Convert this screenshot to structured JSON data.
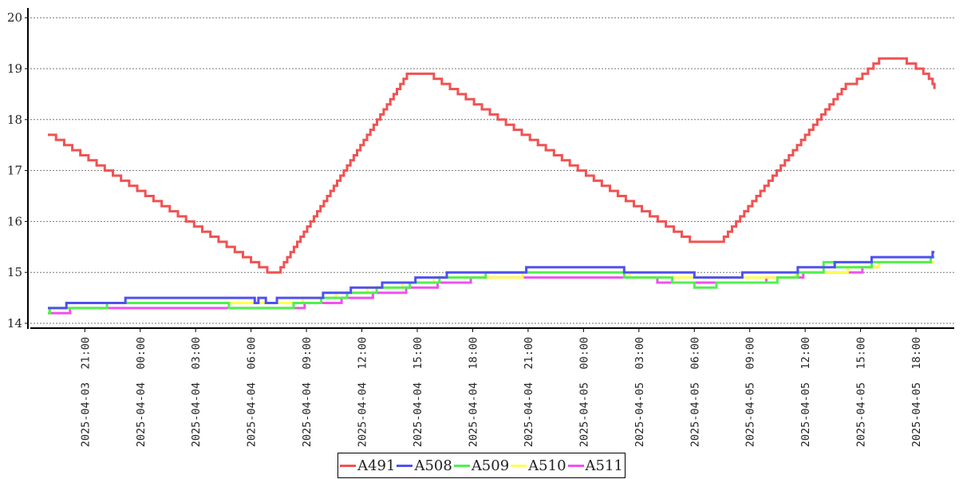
{
  "chart_data": {
    "type": "line",
    "step": true,
    "title": "",
    "xlabel": "",
    "ylabel": "",
    "x_origin": "2025-04-03 19:00",
    "x_unit": "hours since x_origin",
    "xlim": [
      -1.1,
      49.0
    ],
    "ylim": [
      13.9,
      20.2
    ],
    "yticks": [
      14,
      15,
      16,
      17,
      18,
      19,
      20
    ],
    "xtick_hours": [
      2,
      5,
      8,
      11,
      14,
      17,
      20,
      23,
      26,
      29,
      32,
      35,
      38,
      41,
      44,
      47
    ],
    "xtick_labels": [
      "2025-04-03  21:00",
      "2025-04-04  00:00",
      "2025-04-04  03:00",
      "2025-04-04  06:00",
      "2025-04-04  09:00",
      "2025-04-04  12:00",
      "2025-04-04  15:00",
      "2025-04-04  18:00",
      "2025-04-04  21:00",
      "2025-04-05  00:00",
      "2025-04-05  03:00",
      "2025-04-05  06:00",
      "2025-04-05  09:00",
      "2025-04-05  12:00",
      "2025-04-05  15:00",
      "2025-04-05  18:00"
    ],
    "grid": "horizontal-dotted",
    "legend_position": "bottom-center",
    "series": [
      {
        "name": "A491",
        "color": "#f05252",
        "points": [
          [
            0,
            17.7
          ],
          [
            0.44,
            17.6
          ],
          [
            0.88,
            17.5
          ],
          [
            1.32,
            17.4
          ],
          [
            1.76,
            17.3
          ],
          [
            2.2,
            17.2
          ],
          [
            2.64,
            17.1
          ],
          [
            3.08,
            17.0
          ],
          [
            3.52,
            16.9
          ],
          [
            3.96,
            16.8
          ],
          [
            4.4,
            16.7
          ],
          [
            4.84,
            16.6
          ],
          [
            5.28,
            16.5
          ],
          [
            5.72,
            16.4
          ],
          [
            6.16,
            16.3
          ],
          [
            6.6,
            16.2
          ],
          [
            7.04,
            16.1
          ],
          [
            7.48,
            16.0
          ],
          [
            7.92,
            15.9
          ],
          [
            8.36,
            15.8
          ],
          [
            8.8,
            15.7
          ],
          [
            9.24,
            15.6
          ],
          [
            9.68,
            15.5
          ],
          [
            10.12,
            15.4
          ],
          [
            10.56,
            15.3
          ],
          [
            11.0,
            15.2
          ],
          [
            11.44,
            15.1
          ],
          [
            11.88,
            15.0
          ],
          [
            12.6,
            15.1
          ],
          [
            12.78,
            15.2
          ],
          [
            12.96,
            15.3
          ],
          [
            13.14,
            15.4
          ],
          [
            13.32,
            15.5
          ],
          [
            13.5,
            15.6
          ],
          [
            13.68,
            15.7
          ],
          [
            13.86,
            15.8
          ],
          [
            14.04,
            15.9
          ],
          [
            14.22,
            16.0
          ],
          [
            14.4,
            16.1
          ],
          [
            14.58,
            16.2
          ],
          [
            14.76,
            16.3
          ],
          [
            14.94,
            16.4
          ],
          [
            15.12,
            16.5
          ],
          [
            15.3,
            16.6
          ],
          [
            15.48,
            16.7
          ],
          [
            15.66,
            16.8
          ],
          [
            15.84,
            16.9
          ],
          [
            16.02,
            17.0
          ],
          [
            16.2,
            17.1
          ],
          [
            16.38,
            17.2
          ],
          [
            16.56,
            17.3
          ],
          [
            16.74,
            17.4
          ],
          [
            16.92,
            17.5
          ],
          [
            17.1,
            17.6
          ],
          [
            17.28,
            17.7
          ],
          [
            17.46,
            17.8
          ],
          [
            17.64,
            17.9
          ],
          [
            17.82,
            18.0
          ],
          [
            18.0,
            18.1
          ],
          [
            18.18,
            18.2
          ],
          [
            18.36,
            18.3
          ],
          [
            18.54,
            18.4
          ],
          [
            18.72,
            18.5
          ],
          [
            18.9,
            18.6
          ],
          [
            19.08,
            18.7
          ],
          [
            19.26,
            18.8
          ],
          [
            19.44,
            18.9
          ],
          [
            20.9,
            18.8
          ],
          [
            21.33,
            18.7
          ],
          [
            21.77,
            18.6
          ],
          [
            22.2,
            18.5
          ],
          [
            22.63,
            18.4
          ],
          [
            23.07,
            18.3
          ],
          [
            23.5,
            18.2
          ],
          [
            23.93,
            18.1
          ],
          [
            24.36,
            18.0
          ],
          [
            24.8,
            17.9
          ],
          [
            25.23,
            17.8
          ],
          [
            25.66,
            17.7
          ],
          [
            26.1,
            17.6
          ],
          [
            26.53,
            17.5
          ],
          [
            26.96,
            17.4
          ],
          [
            27.4,
            17.3
          ],
          [
            27.83,
            17.2
          ],
          [
            28.26,
            17.1
          ],
          [
            28.69,
            17.0
          ],
          [
            29.13,
            16.9
          ],
          [
            29.56,
            16.8
          ],
          [
            29.99,
            16.7
          ],
          [
            30.43,
            16.6
          ],
          [
            30.86,
            16.5
          ],
          [
            31.29,
            16.4
          ],
          [
            31.73,
            16.3
          ],
          [
            32.16,
            16.2
          ],
          [
            32.59,
            16.1
          ],
          [
            33.02,
            16.0
          ],
          [
            33.46,
            15.9
          ],
          [
            33.89,
            15.8
          ],
          [
            34.32,
            15.7
          ],
          [
            34.76,
            15.6
          ],
          [
            36.6,
            15.7
          ],
          [
            36.82,
            15.8
          ],
          [
            37.04,
            15.9
          ],
          [
            37.26,
            16.0
          ],
          [
            37.48,
            16.1
          ],
          [
            37.7,
            16.2
          ],
          [
            37.92,
            16.3
          ],
          [
            38.14,
            16.4
          ],
          [
            38.36,
            16.5
          ],
          [
            38.58,
            16.6
          ],
          [
            38.8,
            16.7
          ],
          [
            39.02,
            16.8
          ],
          [
            39.24,
            16.9
          ],
          [
            39.46,
            17.0
          ],
          [
            39.68,
            17.1
          ],
          [
            39.9,
            17.2
          ],
          [
            40.12,
            17.3
          ],
          [
            40.34,
            17.4
          ],
          [
            40.56,
            17.5
          ],
          [
            40.78,
            17.6
          ],
          [
            41.0,
            17.7
          ],
          [
            41.22,
            17.8
          ],
          [
            41.44,
            17.9
          ],
          [
            41.66,
            18.0
          ],
          [
            41.88,
            18.1
          ],
          [
            42.1,
            18.2
          ],
          [
            42.32,
            18.3
          ],
          [
            42.54,
            18.4
          ],
          [
            42.76,
            18.5
          ],
          [
            42.98,
            18.6
          ],
          [
            43.2,
            18.7
          ],
          [
            43.8,
            18.8
          ],
          [
            44.1,
            18.9
          ],
          [
            44.4,
            19.0
          ],
          [
            44.7,
            19.1
          ],
          [
            45.0,
            19.2
          ],
          [
            46.5,
            19.1
          ],
          [
            47.0,
            19.0
          ],
          [
            47.4,
            18.9
          ],
          [
            47.7,
            18.8
          ],
          [
            47.9,
            18.7
          ],
          [
            48.0,
            18.6
          ]
        ]
      },
      {
        "name": "A508",
        "color": "#5050f0",
        "points": [
          [
            0,
            14.3
          ],
          [
            1.0,
            14.4
          ],
          [
            4.2,
            14.5
          ],
          [
            11.2,
            14.4
          ],
          [
            11.4,
            14.5
          ],
          [
            11.8,
            14.4
          ],
          [
            12.4,
            14.5
          ],
          [
            14.9,
            14.6
          ],
          [
            16.4,
            14.7
          ],
          [
            18.1,
            14.8
          ],
          [
            19.9,
            14.9
          ],
          [
            21.6,
            15.0
          ],
          [
            25.9,
            15.1
          ],
          [
            31.2,
            15.0
          ],
          [
            35.0,
            14.9
          ],
          [
            37.6,
            15.0
          ],
          [
            40.6,
            15.1
          ],
          [
            42.6,
            15.2
          ],
          [
            44.6,
            15.3
          ],
          [
            47.9,
            15.4
          ],
          [
            48.0,
            15.4
          ]
        ]
      },
      {
        "name": "A509",
        "color": "#50f050",
        "points": [
          [
            0,
            14.2
          ],
          [
            0.1,
            14.3
          ],
          [
            3.2,
            14.4
          ],
          [
            9.8,
            14.3
          ],
          [
            13.3,
            14.4
          ],
          [
            14.8,
            14.5
          ],
          [
            16.2,
            14.6
          ],
          [
            17.8,
            14.7
          ],
          [
            19.6,
            14.8
          ],
          [
            21.2,
            14.9
          ],
          [
            23.7,
            15.0
          ],
          [
            31.2,
            14.9
          ],
          [
            33.8,
            14.8
          ],
          [
            35.0,
            14.7
          ],
          [
            36.2,
            14.8
          ],
          [
            39.5,
            14.9
          ],
          [
            40.6,
            15.0
          ],
          [
            42.0,
            15.2
          ],
          [
            42.6,
            15.1
          ],
          [
            44.6,
            15.2
          ],
          [
            47.8,
            15.3
          ],
          [
            48.0,
            15.3
          ]
        ]
      },
      {
        "name": "A510",
        "color": "#ffff50",
        "points": [
          [
            0,
            14.2
          ],
          [
            0.1,
            14.3
          ],
          [
            3.2,
            14.4
          ],
          [
            13.8,
            14.5
          ],
          [
            15.6,
            14.6
          ],
          [
            17.3,
            14.7
          ],
          [
            19.2,
            14.8
          ],
          [
            20.9,
            14.9
          ],
          [
            25.7,
            15.0
          ],
          [
            31.5,
            14.9
          ],
          [
            37.9,
            14.9
          ],
          [
            40.5,
            15.0
          ],
          [
            43.3,
            15.1
          ],
          [
            45.0,
            15.2
          ],
          [
            48.0,
            15.2
          ]
        ]
      },
      {
        "name": "A511",
        "color": "#f050f0",
        "points": [
          [
            0,
            14.2
          ],
          [
            1.2,
            14.3
          ],
          [
            13.9,
            14.4
          ],
          [
            15.9,
            14.5
          ],
          [
            17.6,
            14.6
          ],
          [
            19.4,
            14.7
          ],
          [
            21.1,
            14.8
          ],
          [
            22.9,
            14.9
          ],
          [
            29.0,
            14.9
          ],
          [
            33.0,
            14.8
          ],
          [
            36.0,
            14.8
          ],
          [
            38.9,
            14.9
          ],
          [
            40.9,
            15.0
          ],
          [
            44.1,
            15.1
          ],
          [
            45.0,
            15.1
          ]
        ]
      }
    ]
  }
}
